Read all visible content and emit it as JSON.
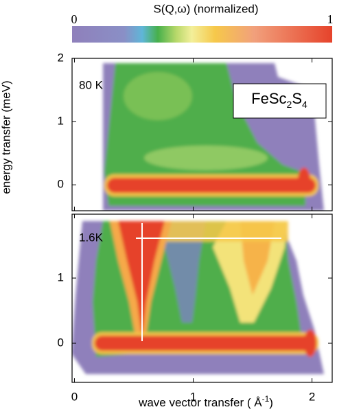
{
  "chart_data": {
    "type": "heatmap",
    "colorbar": {
      "title": "S(Q,ω) (normalized)",
      "ticks": [
        0,
        1
      ]
    },
    "y_label": "energy transfer (meV)",
    "x_label": [
      "wave vector transfer ( Å",
      "-1",
      ")"
    ],
    "xlim": [
      -0.02,
      2.17
    ],
    "xticks": [
      0,
      1,
      2
    ],
    "panels": [
      {
        "label": "80 K",
        "compound": [
          "FeSc",
          "2",
          "S",
          "4"
        ],
        "ylim": [
          -0.41,
          2
        ],
        "yticks": [
          0,
          1,
          2
        ]
      },
      {
        "label": "1.6K",
        "ylim": [
          -0.6,
          1.98
        ],
        "yticks": [
          0,
          1
        ]
      }
    ]
  }
}
